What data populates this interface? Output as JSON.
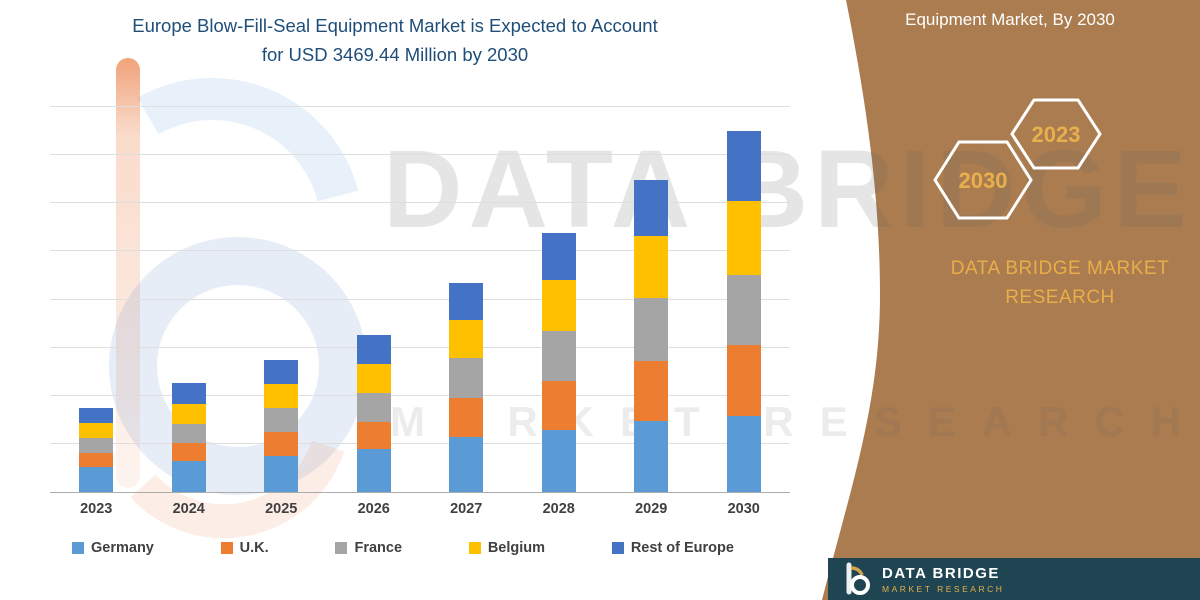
{
  "title": {
    "line1": "Europe Blow-Fill-Seal Equipment Market is Expected to Account",
    "line2": "for USD 3469.44 Million by 2030"
  },
  "watermark": {
    "line1": "DATA BRIDGE",
    "line2": "MARKET RESEARCH"
  },
  "side_panel": {
    "title": "Equipment Market, By 2030",
    "badges": [
      {
        "label": "2030"
      },
      {
        "label": "2023"
      }
    ],
    "brand_line1": "DATA BRIDGE MARKET",
    "brand_line2": "RESEARCH",
    "footer": {
      "brand": "DATA BRIDGE",
      "sub": "MARKET RESEARCH"
    },
    "panel_color": "#AA7C4F",
    "footer_color": "#1E4551",
    "gold_color": "#E8AE4A"
  },
  "chart_data": {
    "type": "bar",
    "stacked": true,
    "title": "Europe Blow-Fill-Seal Equipment Market is Expected to Account for USD 3469.44 Million by 2030",
    "xlabel": "",
    "ylabel": "",
    "value_unit": "USD Million",
    "values_estimated": true,
    "grid": true,
    "legend_position": "bottom",
    "ylim": [
      0,
      3700
    ],
    "categories": [
      "2023",
      "2024",
      "2025",
      "2026",
      "2027",
      "2028",
      "2029",
      "2030"
    ],
    "series": [
      {
        "name": "Germany",
        "color": "#5B9BD5",
        "values": [
          240,
          295,
          350,
          415,
          530,
          600,
          680,
          730
        ]
      },
      {
        "name": "U.K.",
        "color": "#ED7D31",
        "values": [
          135,
          175,
          225,
          260,
          370,
          465,
          580,
          680
        ]
      },
      {
        "name": "France",
        "color": "#A5A5A5",
        "values": [
          140,
          185,
          230,
          280,
          385,
          485,
          600,
          680
        ]
      },
      {
        "name": "Belgium",
        "color": "#FFC000",
        "values": [
          145,
          195,
          235,
          275,
          365,
          485,
          600,
          705
        ]
      },
      {
        "name": "Rest of Europe",
        "color": "#4472C4",
        "values": [
          145,
          200,
          230,
          280,
          360,
          455,
          535,
          674.44
        ]
      }
    ],
    "totals_estimated": [
      805,
      1050,
      1270,
      1510,
      2010,
      2490,
      2995,
      3469.44
    ]
  }
}
